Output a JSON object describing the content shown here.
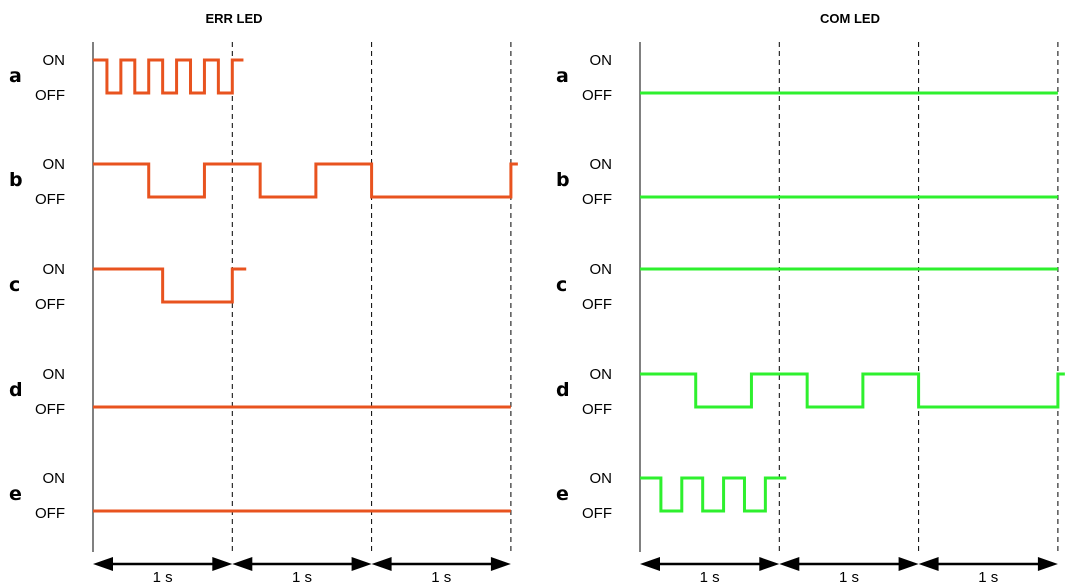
{
  "colors": {
    "err": "#e8531f",
    "com": "#2ef02e",
    "line": "#000000"
  },
  "panels": [
    {
      "key": "err",
      "title": "ERR LED",
      "color_key": "err",
      "rows": [
        {
          "letter": "a",
          "on_label": "ON",
          "off_label": "OFF",
          "end": 1.08,
          "signal": [
            [
              0,
              1
            ],
            [
              0.1,
              0
            ],
            [
              0.2,
              1
            ],
            [
              0.3,
              0
            ],
            [
              0.4,
              1
            ],
            [
              0.5,
              0
            ],
            [
              0.6,
              1
            ],
            [
              0.7,
              0
            ],
            [
              0.8,
              1
            ],
            [
              0.9,
              0
            ],
            [
              1.0,
              1
            ]
          ]
        },
        {
          "letter": "b",
          "on_label": "ON",
          "off_label": "OFF",
          "end": 3.05,
          "signal": [
            [
              0,
              1
            ],
            [
              0.4,
              0
            ],
            [
              0.8,
              1
            ],
            [
              1.2,
              0
            ],
            [
              1.6,
              1
            ],
            [
              2.0,
              0
            ],
            [
              3.0,
              1
            ]
          ]
        },
        {
          "letter": "c",
          "on_label": "ON",
          "off_label": "OFF",
          "end": 1.1,
          "signal": [
            [
              0,
              1
            ],
            [
              0.5,
              0
            ],
            [
              1.0,
              1
            ]
          ]
        },
        {
          "letter": "d",
          "on_label": "ON",
          "off_label": "OFF",
          "end": 3.0,
          "signal": [
            [
              0,
              0
            ]
          ]
        },
        {
          "letter": "e",
          "on_label": "ON",
          "off_label": "OFF",
          "end": 3.0,
          "signal": [
            [
              0,
              0
            ]
          ]
        }
      ],
      "time_axis": [
        "1 s",
        "1 s",
        "1 s"
      ]
    },
    {
      "key": "com",
      "title": "COM LED",
      "color_key": "com",
      "rows": [
        {
          "letter": "a",
          "on_label": "ON",
          "off_label": "OFF",
          "end": 3.0,
          "signal": [
            [
              0,
              0
            ]
          ]
        },
        {
          "letter": "b",
          "on_label": "ON",
          "off_label": "OFF",
          "end": 3.0,
          "signal": [
            [
              0,
              0
            ]
          ]
        },
        {
          "letter": "c",
          "on_label": "ON",
          "off_label": "OFF",
          "end": 3.0,
          "signal": [
            [
              0,
              1
            ]
          ]
        },
        {
          "letter": "d",
          "on_label": "ON",
          "off_label": "OFF",
          "end": 3.05,
          "signal": [
            [
              0,
              1
            ],
            [
              0.4,
              0
            ],
            [
              0.8,
              1
            ],
            [
              1.2,
              0
            ],
            [
              1.6,
              1
            ],
            [
              2.0,
              0
            ],
            [
              3.0,
              1
            ]
          ]
        },
        {
          "letter": "e",
          "on_label": "ON",
          "off_label": "OFF",
          "end": 1.05,
          "signal": [
            [
              0,
              1
            ],
            [
              0.15,
              0
            ],
            [
              0.3,
              1
            ],
            [
              0.45,
              0
            ],
            [
              0.6,
              1
            ],
            [
              0.75,
              0
            ],
            [
              0.9,
              1
            ]
          ]
        }
      ],
      "time_axis": [
        "1 s",
        "1 s",
        "1 s"
      ]
    }
  ]
}
